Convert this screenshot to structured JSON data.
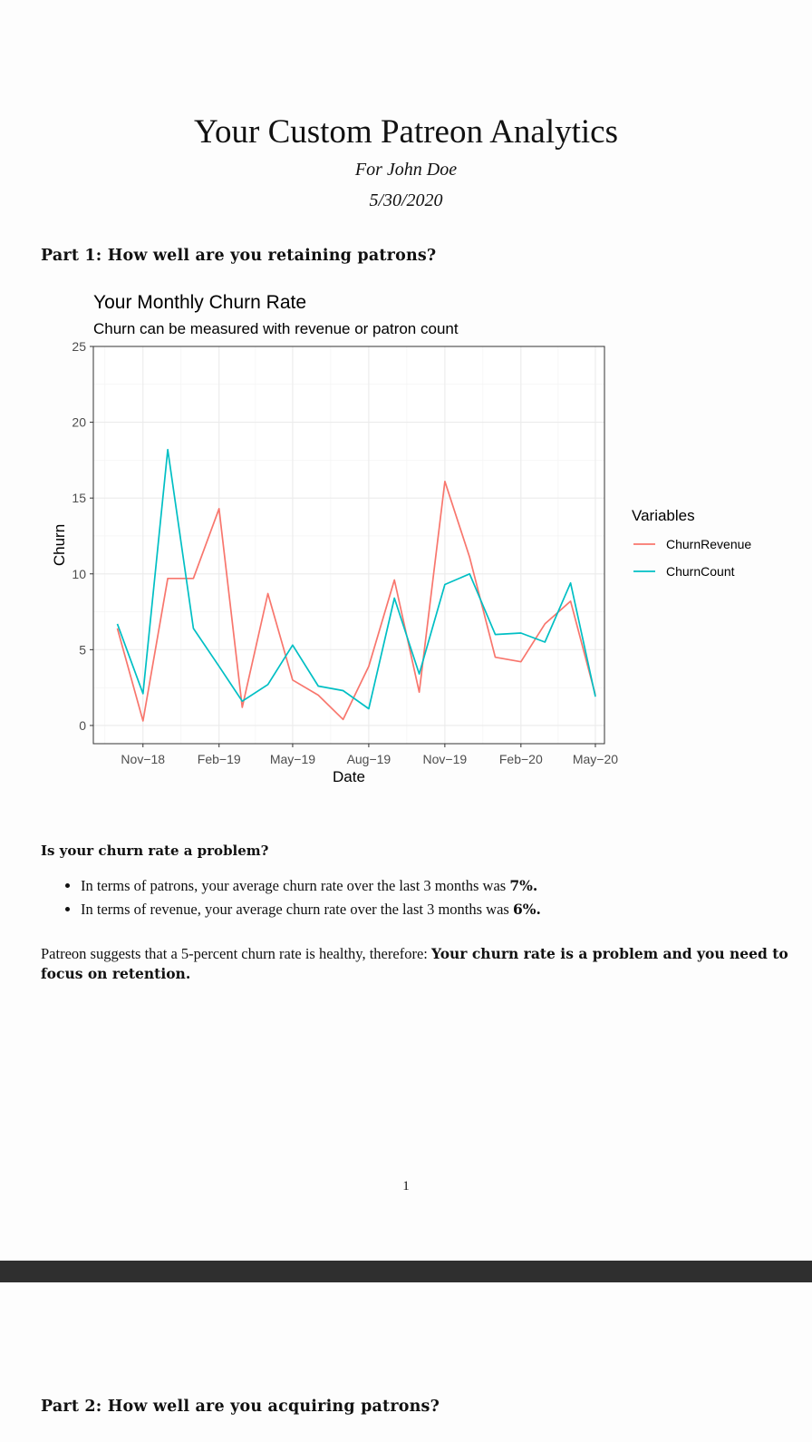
{
  "document": {
    "title": "Your Custom Patreon Analytics",
    "author": "For John Doe",
    "date": "5/30/2020",
    "part1_heading": "Part 1: How well are you retaining patrons?",
    "question": "Is your churn rate a problem?",
    "bullets": {
      "patrons": {
        "text": "In terms of patrons, your average churn rate over the last 3 months was ",
        "value": "7%."
      },
      "revenue": {
        "text": "In terms of revenue, your average churn rate over the last 3 months was ",
        "value": "6%."
      }
    },
    "conclusion": {
      "text": "Patreon suggests that a 5-percent churn rate is healthy, therefore: ",
      "verdict": "Your churn rate is a problem and you need to focus on retention."
    },
    "page_number": "1",
    "part2_heading": "Part 2: How well are you acquiring patrons?"
  },
  "chart_data": {
    "type": "line",
    "title": "Your Monthly Churn Rate",
    "subtitle": "Churn can be measured with revenue or patron count",
    "xlabel": "Date",
    "ylabel": "Churn",
    "legend_title": "Variables",
    "legend_position": "right",
    "grid": true,
    "ylim": [
      -1.2,
      25.0
    ],
    "xlim": [
      "2018-09-02",
      "2020-05-12"
    ],
    "y_ticks": [
      0,
      5,
      10,
      15,
      20,
      25
    ],
    "x_tick_labels": [
      {
        "date": "2018-11-01",
        "label": "Nov−18"
      },
      {
        "date": "2019-02-01",
        "label": "Feb−19"
      },
      {
        "date": "2019-05-01",
        "label": "May−19"
      },
      {
        "date": "2019-08-01",
        "label": "Aug−19"
      },
      {
        "date": "2019-11-01",
        "label": "Nov−19"
      },
      {
        "date": "2020-02-01",
        "label": "Feb−20"
      },
      {
        "date": "2020-05-01",
        "label": "May−20"
      }
    ],
    "x": [
      "2018-10-01",
      "2018-11-01",
      "2018-12-01",
      "2019-01-01",
      "2019-02-01",
      "2019-03-01",
      "2019-04-01",
      "2019-05-01",
      "2019-06-01",
      "2019-07-01",
      "2019-08-01",
      "2019-09-01",
      "2019-10-01",
      "2019-11-01",
      "2019-12-01",
      "2020-01-01",
      "2020-02-01",
      "2020-03-01",
      "2020-04-01",
      "2020-05-01"
    ],
    "series": [
      {
        "name": "ChurnRevenue",
        "color": "#F8766D",
        "values": [
          6.4,
          0.3,
          9.7,
          9.7,
          14.3,
          1.2,
          8.7,
          3.0,
          2.0,
          0.4,
          3.9,
          9.6,
          2.2,
          16.1,
          11.1,
          4.5,
          4.2,
          6.7,
          8.2,
          2.0
        ]
      },
      {
        "name": "ChurnCount",
        "color": "#00BFC4",
        "values": [
          6.7,
          2.1,
          18.2,
          6.4,
          3.9,
          1.6,
          2.7,
          5.3,
          2.6,
          2.3,
          1.1,
          8.4,
          3.4,
          9.3,
          10.0,
          6.0,
          6.1,
          5.5,
          9.4,
          1.9
        ]
      }
    ]
  }
}
